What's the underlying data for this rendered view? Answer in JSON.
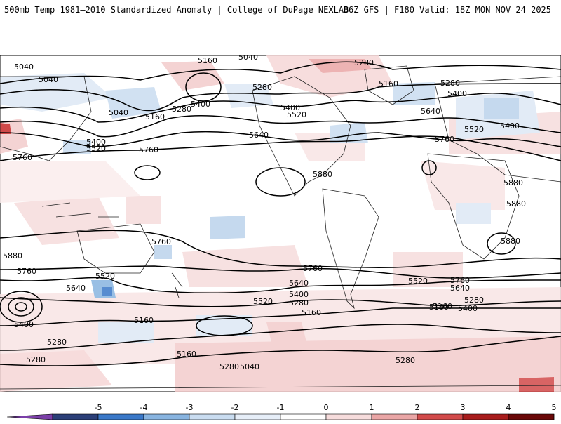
{
  "header": {
    "title_left": "500mb Temp 1981–2010 Standardized Anomaly | College of DuPage NEXLAB",
    "title_right": "06Z GFS | F180 Valid: 18Z MON NOV 24 2025"
  },
  "map": {
    "contour_labels": [
      {
        "id": "c1",
        "text": "5040"
      },
      {
        "id": "c2",
        "text": "5160"
      },
      {
        "id": "c3",
        "text": "5040"
      },
      {
        "id": "c4",
        "text": "5160"
      },
      {
        "id": "c5",
        "text": "5280"
      },
      {
        "id": "c6",
        "text": "5160"
      },
      {
        "id": "c7",
        "text": "5280"
      },
      {
        "id": "c8",
        "text": "5400"
      },
      {
        "id": "c9",
        "text": "5040"
      },
      {
        "id": "c10",
        "text": "5040"
      },
      {
        "id": "c11",
        "text": "5280"
      },
      {
        "id": "c12",
        "text": "5160"
      },
      {
        "id": "c13",
        "text": "5280"
      },
      {
        "id": "c14",
        "text": "5400"
      },
      {
        "id": "c15",
        "text": "5400"
      },
      {
        "id": "c16",
        "text": "5520"
      },
      {
        "id": "c17",
        "text": "5640"
      },
      {
        "id": "c18",
        "text": "5640"
      },
      {
        "id": "c19",
        "text": "5520"
      },
      {
        "id": "c20",
        "text": "5400"
      },
      {
        "id": "c21",
        "text": "5760"
      },
      {
        "id": "c22",
        "text": "5400"
      },
      {
        "id": "c23",
        "text": "5520"
      },
      {
        "id": "c24",
        "text": "5760"
      },
      {
        "id": "c25",
        "text": "5760"
      },
      {
        "id": "c26",
        "text": "5880"
      },
      {
        "id": "c27",
        "text": "5880"
      },
      {
        "id": "c28",
        "text": "5880"
      },
      {
        "id": "c29",
        "text": "5880"
      },
      {
        "id": "c30",
        "text": "5760"
      },
      {
        "id": "c31",
        "text": "5880"
      },
      {
        "id": "c32",
        "text": "5760"
      },
      {
        "id": "c33",
        "text": "5760"
      },
      {
        "id": "c34",
        "text": "5520"
      },
      {
        "id": "c35",
        "text": "5640"
      },
      {
        "id": "c36",
        "text": "5640"
      },
      {
        "id": "c37",
        "text": "5520"
      },
      {
        "id": "c38",
        "text": "5760"
      },
      {
        "id": "c39",
        "text": "5640"
      },
      {
        "id": "c40",
        "text": "5400"
      },
      {
        "id": "c41",
        "text": "5520"
      },
      {
        "id": "c42",
        "text": "5280"
      },
      {
        "id": "c43",
        "text": "5160"
      },
      {
        "id": "c44",
        "text": "5400"
      },
      {
        "id": "c45",
        "text": "5280"
      },
      {
        "id": "c46",
        "text": "5160"
      },
      {
        "id": "c47",
        "text": "5400"
      },
      {
        "id": "c48",
        "text": "5160"
      },
      {
        "id": "c49",
        "text": "5280"
      },
      {
        "id": "c50",
        "text": "5280"
      },
      {
        "id": "c51",
        "text": "5160"
      },
      {
        "id": "c52",
        "text": "5280"
      },
      {
        "id": "c53",
        "text": "5280"
      },
      {
        "id": "c54",
        "text": "5160"
      },
      {
        "id": "c55",
        "text": "5040"
      }
    ]
  },
  "colorbar": {
    "ticks": [
      "-5",
      "-4",
      "-3",
      "-2",
      "-1",
      "0",
      "1",
      "2",
      "3",
      "4",
      "5"
    ],
    "colors": [
      "#7b3fa8",
      "#2b3f78",
      "#3a78c8",
      "#88b4e0",
      "#c9dcf0",
      "#e6eef8",
      "#ffffff",
      "#f6dcdc",
      "#eaa6a6",
      "#d24a4a",
      "#a81c1c",
      "#6a0808",
      "#f2b619"
    ]
  }
}
